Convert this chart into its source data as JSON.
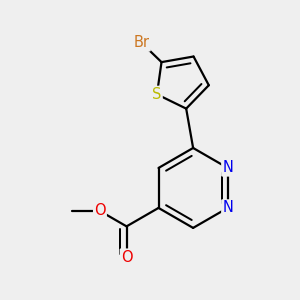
{
  "background_color": "#efefef",
  "bond_color": "#000000",
  "bond_width": 1.6,
  "atom_colors": {
    "Br": "#cc7722",
    "S": "#bbbb00",
    "N": "#0000ee",
    "O": "#ee0000",
    "C": "#000000"
  },
  "font_size_atom": 10.5
}
